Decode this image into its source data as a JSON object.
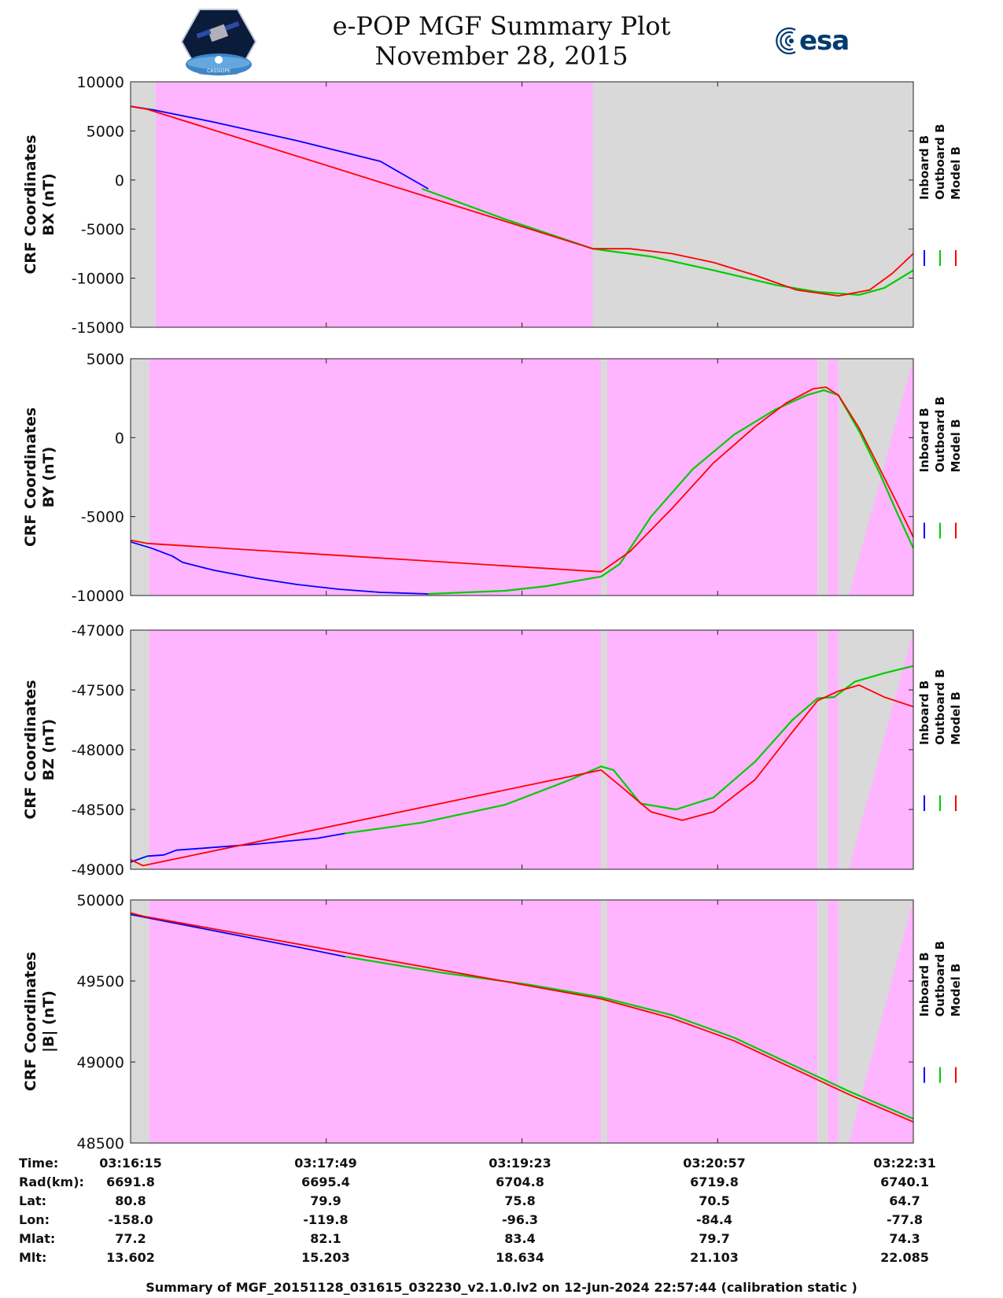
{
  "header": {
    "title": "e-POP MGF Summary Plot",
    "date": "November 28, 2015",
    "logo_left": "e-POP CASSIOPE mission logo",
    "logo_right": "esa"
  },
  "footer": "Summary of MGF_20151128_031615_032230_v2.1.0.lv2 on 12-Jun-2024 22:57:44 (calibration static )",
  "colors": {
    "inboard": "#0000ff",
    "outboard": "#00cc00",
    "model": "#ff0000",
    "pink": "#ffb4ff",
    "gray": "#d9d9d9"
  },
  "legend": [
    "Inboard B",
    "Outboard B",
    "Model B"
  ],
  "orbit_table": {
    "labels": [
      "Time:",
      "Rad(km):",
      "Lat:",
      "Lon:",
      "Mlat:",
      "Mlt:"
    ],
    "columns": [
      [
        "03:16:15",
        "6691.8",
        "80.8",
        "-158.0",
        "77.2",
        "13.602"
      ],
      [
        "03:17:49",
        "6695.4",
        "79.9",
        "-119.8",
        "82.1",
        "15.203"
      ],
      [
        "03:19:23",
        "6704.8",
        "75.8",
        "-96.3",
        "83.4",
        "18.634"
      ],
      [
        "03:20:57",
        "6719.8",
        "70.5",
        "-84.4",
        "79.7",
        "21.103"
      ],
      [
        "03:22:31",
        "6740.1",
        "64.7",
        "-77.8",
        "74.3",
        "22.085"
      ]
    ]
  },
  "chart_data": [
    {
      "type": "line",
      "ylabel_line1": "CRF Coordinates",
      "ylabel_line2": "BX (nT)",
      "ylim": [
        -15000,
        10000
      ],
      "yticks": [
        10000,
        5000,
        0,
        -5000,
        -10000,
        -15000
      ],
      "ytick_labels": [
        "10000",
        "5000",
        "0",
        "-5000",
        "-10000",
        "-15000"
      ],
      "x_range": [
        0,
        376
      ],
      "x_unit": "seconds after 03:16:15",
      "xticks": [
        0,
        94,
        188,
        282,
        376
      ],
      "background": [
        {
          "x0": 0,
          "x1": 12,
          "color": "gray"
        },
        {
          "x0": 12,
          "x1": 222,
          "color": "pink"
        },
        {
          "x0": 222,
          "x1": 376,
          "color": "gray"
        }
      ],
      "series": [
        {
          "name": "Inboard B",
          "color": "inboard",
          "x": [
            0,
            12,
            40,
            80,
            120,
            143
          ],
          "y": [
            7500,
            7100,
            5900,
            4000,
            1900,
            -900
          ]
        },
        {
          "name": "Outboard B",
          "color": "outboard",
          "x": [
            140,
            180,
            222,
            250,
            280,
            310,
            330,
            350,
            362,
            376
          ],
          "y": [
            -900,
            -4000,
            -7000,
            -7800,
            -9200,
            -10700,
            -11400,
            -11700,
            -11000,
            -9200
          ]
        },
        {
          "name": "Model B",
          "color": "model",
          "x": [
            0,
            8,
            222,
            240,
            260,
            280,
            300,
            320,
            340,
            355,
            366,
            376
          ],
          "y": [
            7500,
            7200,
            -7000,
            -7000,
            -7500,
            -8400,
            -9700,
            -11200,
            -11800,
            -11200,
            -9500,
            -7500
          ]
        }
      ]
    },
    {
      "type": "line",
      "ylabel_line1": "CRF Coordinates",
      "ylabel_line2": "BY (nT)",
      "ylim": [
        -10000,
        5000
      ],
      "yticks": [
        5000,
        0,
        -5000,
        -10000
      ],
      "ytick_labels": [
        "5000",
        "0",
        "-5000",
        "-10000"
      ],
      "x_range": [
        0,
        376
      ],
      "x_unit": "seconds after 03:16:15",
      "xticks": [
        0,
        94,
        188,
        282,
        376
      ],
      "background": [
        {
          "x0": 0,
          "x1": 4,
          "color": "gray"
        },
        {
          "x0": 4,
          "x1": 9,
          "color": "gray"
        },
        {
          "x0": 9,
          "x1": 226,
          "color": "pink"
        },
        {
          "x0": 226,
          "x1": 229,
          "color": "gray"
        },
        {
          "x0": 229,
          "x1": 330,
          "color": "pink"
        },
        {
          "x0": 330,
          "x1": 335,
          "color": "gray"
        },
        {
          "x0": 335,
          "x1": 340,
          "color": "pink"
        },
        {
          "x0": 340,
          "x1": 376,
          "color": "gray",
          "wedge": true,
          "wedge_from_x": 345
        }
      ],
      "series": [
        {
          "name": "Inboard B",
          "color": "inboard",
          "x": [
            0,
            10,
            20,
            25,
            40,
            60,
            80,
            100,
            120,
            143
          ],
          "y": [
            -6600,
            -7000,
            -7500,
            -7900,
            -8400,
            -8900,
            -9300,
            -9600,
            -9800,
            -9900
          ]
        },
        {
          "name": "Outboard B",
          "color": "outboard",
          "x": [
            143,
            180,
            200,
            226,
            235,
            250,
            270,
            290,
            310,
            325,
            333,
            340,
            350,
            360,
            368,
            376
          ],
          "y": [
            -9900,
            -9700,
            -9400,
            -8800,
            -8000,
            -5000,
            -2000,
            200,
            1800,
            2700,
            3000,
            2700,
            400,
            -2300,
            -4700,
            -7000
          ]
        },
        {
          "name": "Model B",
          "color": "model",
          "x": [
            0,
            8,
            226,
            240,
            260,
            280,
            300,
            315,
            328,
            334,
            340,
            350,
            360,
            368,
            376
          ],
          "y": [
            -6500,
            -6700,
            -8500,
            -7200,
            -4500,
            -1600,
            700,
            2200,
            3100,
            3200,
            2700,
            600,
            -2000,
            -4100,
            -6300
          ]
        }
      ]
    },
    {
      "type": "line",
      "ylabel_line1": "CRF Coordinates",
      "ylabel_line2": "BZ (nT)",
      "ylim": [
        -49000,
        -47000
      ],
      "yticks": [
        -47000,
        -47500,
        -48000,
        -48500,
        -49000
      ],
      "ytick_labels": [
        "-47000",
        "-47500",
        "-48000",
        "-48500",
        "-49000"
      ],
      "x_range": [
        0,
        376
      ],
      "x_unit": "seconds after 03:16:15",
      "xticks": [
        0,
        94,
        188,
        282,
        376
      ],
      "background": [
        {
          "x0": 0,
          "x1": 4,
          "color": "gray"
        },
        {
          "x0": 4,
          "x1": 9,
          "color": "gray"
        },
        {
          "x0": 9,
          "x1": 226,
          "color": "pink"
        },
        {
          "x0": 226,
          "x1": 229,
          "color": "gray"
        },
        {
          "x0": 229,
          "x1": 330,
          "color": "pink"
        },
        {
          "x0": 330,
          "x1": 335,
          "color": "gray"
        },
        {
          "x0": 335,
          "x1": 340,
          "color": "pink"
        },
        {
          "x0": 340,
          "x1": 376,
          "color": "gray",
          "wedge": true,
          "wedge_from_x": 345
        }
      ],
      "series": [
        {
          "name": "Inboard B",
          "color": "inboard",
          "x": [
            0,
            8,
            16,
            22,
            30,
            60,
            90,
            103
          ],
          "y": [
            -48940,
            -48890,
            -48880,
            -48840,
            -48830,
            -48790,
            -48740,
            -48700
          ]
        },
        {
          "name": "Outboard B",
          "color": "outboard",
          "x": [
            103,
            140,
            180,
            210,
            226,
            232,
            245,
            262,
            280,
            300,
            318,
            330,
            338,
            348,
            362,
            376
          ],
          "y": [
            -48700,
            -48610,
            -48460,
            -48260,
            -48140,
            -48170,
            -48450,
            -48500,
            -48400,
            -48100,
            -47750,
            -47570,
            -47560,
            -47430,
            -47360,
            -47300
          ]
        },
        {
          "name": "Model B",
          "color": "model",
          "x": [
            0,
            6,
            226,
            235,
            250,
            265,
            280,
            300,
            318,
            330,
            340,
            350,
            362,
            376
          ],
          "y": [
            -48920,
            -48970,
            -48170,
            -48300,
            -48520,
            -48590,
            -48520,
            -48250,
            -47850,
            -47590,
            -47510,
            -47460,
            -47560,
            -47640
          ]
        }
      ]
    },
    {
      "type": "line",
      "ylabel_line1": "CRF Coordinates",
      "ylabel_line2": "|B| (nT)",
      "ylim": [
        48500,
        50000
      ],
      "yticks": [
        50000,
        49500,
        49000,
        48500
      ],
      "ytick_labels": [
        "50000",
        "49500",
        "49000",
        "48500"
      ],
      "x_range": [
        0,
        376
      ],
      "x_unit": "seconds after 03:16:15",
      "xticks": [
        0,
        94,
        188,
        282,
        376
      ],
      "background": [
        {
          "x0": 0,
          "x1": 4,
          "color": "gray"
        },
        {
          "x0": 4,
          "x1": 9,
          "color": "gray"
        },
        {
          "x0": 9,
          "x1": 226,
          "color": "pink"
        },
        {
          "x0": 226,
          "x1": 229,
          "color": "gray"
        },
        {
          "x0": 229,
          "x1": 330,
          "color": "pink"
        },
        {
          "x0": 330,
          "x1": 335,
          "color": "gray"
        },
        {
          "x0": 335,
          "x1": 340,
          "color": "pink"
        },
        {
          "x0": 340,
          "x1": 376,
          "color": "gray",
          "wedge": true,
          "wedge_from_x": 345
        }
      ],
      "series": [
        {
          "name": "Inboard B",
          "color": "inboard",
          "x": [
            0,
            40,
            80,
            103
          ],
          "y": [
            49910,
            49810,
            49710,
            49650
          ]
        },
        {
          "name": "Outboard B",
          "color": "outboard",
          "x": [
            103,
            150,
            190,
            226,
            260,
            290,
            320,
            345,
            376
          ],
          "y": [
            49650,
            49550,
            49480,
            49400,
            49290,
            49150,
            48970,
            48820,
            48650
          ]
        },
        {
          "name": "Model B",
          "color": "model",
          "x": [
            0,
            6,
            226,
            260,
            290,
            320,
            345,
            376
          ],
          "y": [
            49920,
            49900,
            49390,
            49270,
            49130,
            48950,
            48800,
            48630
          ]
        }
      ]
    }
  ]
}
